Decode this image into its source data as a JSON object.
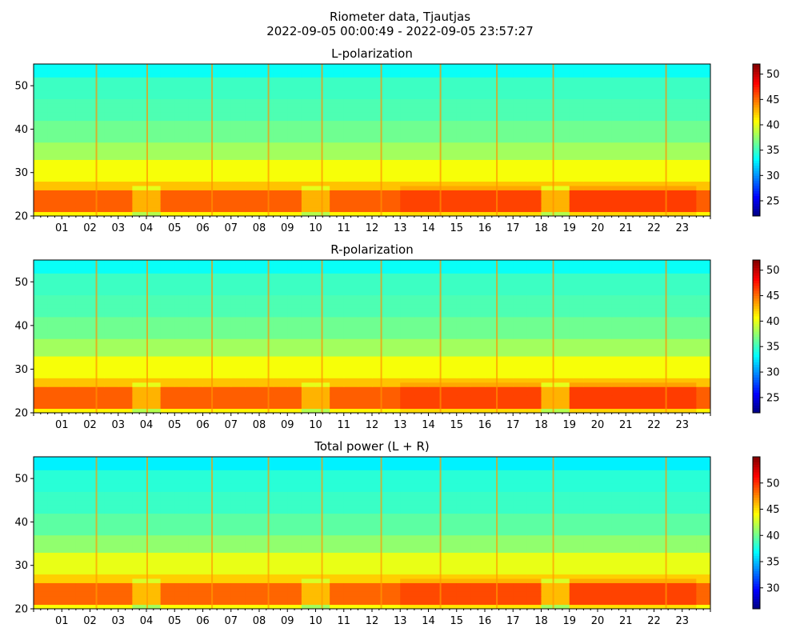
{
  "figure": {
    "title_line1": "Riometer data, Tjautjas",
    "title_line2": "2022-09-05 00:00:49 - 2022-09-05 23:57:27"
  },
  "chart_data": [
    {
      "type": "heatmap",
      "title": "L-polarization",
      "x_tick_labels": [
        "01",
        "02",
        "03",
        "04",
        "05",
        "06",
        "07",
        "08",
        "09",
        "10",
        "11",
        "12",
        "13",
        "14",
        "15",
        "16",
        "17",
        "18",
        "19",
        "20",
        "21",
        "22",
        "23"
      ],
      "x_range_hours": [
        0,
        24
      ],
      "y_range": [
        20,
        55
      ],
      "y_ticks": [
        20,
        30,
        40,
        50
      ],
      "colorbar_range": [
        22,
        52
      ],
      "colorbar_ticks": [
        25,
        30,
        35,
        40,
        45,
        50
      ],
      "colormap": "jet",
      "intensity_offset": 0
    },
    {
      "type": "heatmap",
      "title": "R-polarization",
      "x_tick_labels": [
        "01",
        "02",
        "03",
        "04",
        "05",
        "06",
        "07",
        "08",
        "09",
        "10",
        "11",
        "12",
        "13",
        "14",
        "15",
        "16",
        "17",
        "18",
        "19",
        "20",
        "21",
        "22",
        "23"
      ],
      "x_range_hours": [
        0,
        24
      ],
      "y_range": [
        20,
        55
      ],
      "y_ticks": [
        20,
        30,
        40,
        50
      ],
      "colorbar_range": [
        22,
        52
      ],
      "colorbar_ticks": [
        25,
        30,
        35,
        40,
        45,
        50
      ],
      "colormap": "jet",
      "intensity_offset": 0
    },
    {
      "type": "heatmap",
      "title": "Total power (L + R)",
      "x_tick_labels": [
        "01",
        "02",
        "03",
        "04",
        "05",
        "06",
        "07",
        "08",
        "09",
        "10",
        "11",
        "12",
        "13",
        "14",
        "15",
        "16",
        "17",
        "18",
        "19",
        "20",
        "21",
        "22",
        "23"
      ],
      "x_range_hours": [
        0,
        24
      ],
      "y_range": [
        20,
        55
      ],
      "y_ticks": [
        20,
        30,
        40,
        50
      ],
      "colorbar_range": [
        26,
        55
      ],
      "colorbar_ticks": [
        30,
        35,
        40,
        45,
        50
      ],
      "colormap": "jet",
      "intensity_offset": 3
    }
  ]
}
